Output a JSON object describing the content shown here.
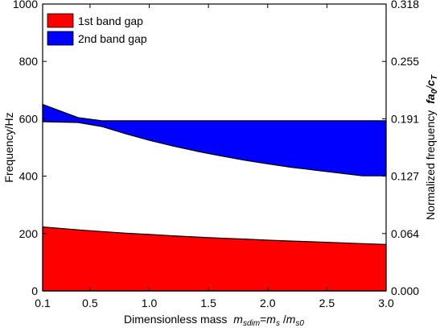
{
  "chart_data": {
    "type": "area",
    "xlabel": "Dimensionless mass",
    "xlabel_math": {
      "a": "m",
      "a_sub": "sdim",
      "eq": "=",
      "b": "m",
      "b_sub": "s",
      "slash": " /",
      "c": "m",
      "c_sub": "s0"
    },
    "ylabel": "Frequency/Hz",
    "y2label": "Normalized frequency",
    "y2label_math": {
      "a": "fa",
      "a_sub": "0",
      "slash": "/",
      "b": "c",
      "b_sub": "T"
    },
    "xlim": [
      0.1,
      3.0
    ],
    "ylim": [
      0,
      1000
    ],
    "xticks": [
      "0.1",
      "0.5",
      "1.0",
      "1.5",
      "2.0",
      "2.5",
      "3.0"
    ],
    "xtick_values": [
      0.1,
      0.5,
      1.0,
      1.5,
      2.0,
      2.5,
      3.0
    ],
    "yticks": [
      "0",
      "200",
      "400",
      "600",
      "800",
      "1000"
    ],
    "ytick_values": [
      0,
      200,
      400,
      600,
      800,
      1000
    ],
    "y2ticks": [
      "0.000",
      "0.064",
      "0.127",
      "0.191",
      "0.255",
      "0.318"
    ],
    "legend_position": "top-left",
    "series": [
      {
        "name": "1st band gap",
        "color": "#ff0000",
        "x": [
          0.1,
          0.4,
          0.6,
          0.8,
          1.0,
          1.2,
          1.4,
          1.6,
          1.8,
          2.0,
          2.2,
          2.4,
          2.6,
          2.8,
          3.0
        ],
        "lower": [
          0,
          0,
          0,
          0,
          0,
          0,
          0,
          0,
          0,
          0,
          0,
          0,
          0,
          0,
          0
        ],
        "upper": [
          223,
          213,
          207,
          201,
          197,
          192,
          188,
          184,
          181,
          177,
          174,
          171,
          168,
          165,
          162
        ]
      },
      {
        "name": "2nd band gap",
        "color": "#0000ff",
        "x": [
          0.1,
          0.4,
          0.6,
          0.8,
          1.0,
          1.2,
          1.4,
          1.6,
          1.8,
          2.0,
          2.2,
          2.4,
          2.6,
          2.8,
          3.0
        ],
        "lower": [
          590,
          587,
          573,
          548,
          525,
          505,
          487,
          471,
          456,
          443,
          431,
          421,
          411,
          401,
          401
        ],
        "upper": [
          650,
          604,
          593,
          593,
          593,
          593,
          593,
          593,
          593,
          593,
          593,
          593,
          593,
          593,
          593
        ]
      }
    ]
  }
}
